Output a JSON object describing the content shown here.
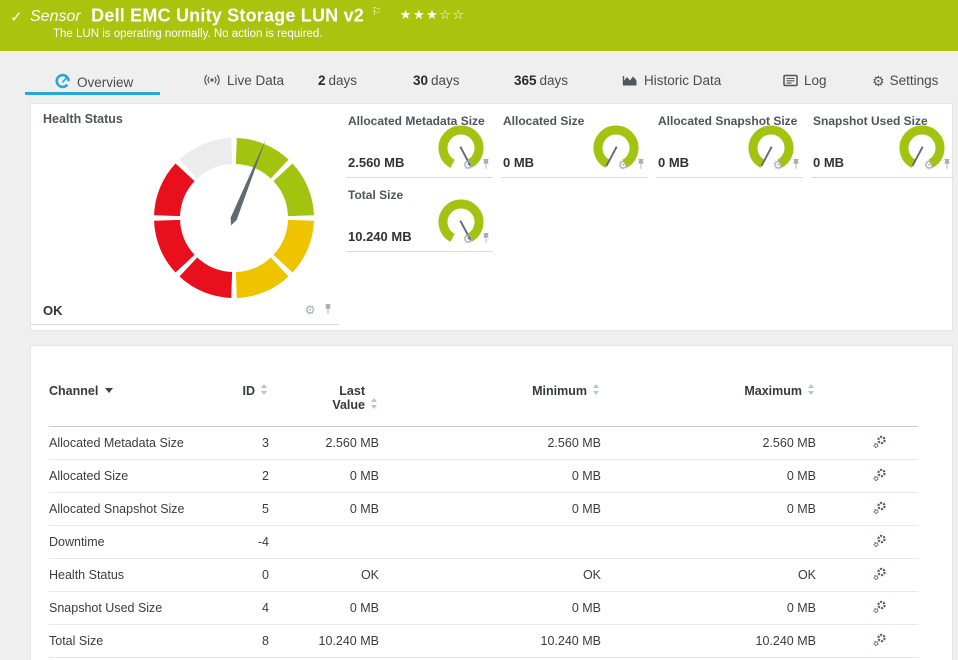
{
  "colors": {
    "brand-green": "#a8c40e",
    "accent-blue": "#2aa5dc",
    "gauge-green": "#a2c411",
    "gauge-yellow": "#f0c300",
    "gauge-red": "#e8101c",
    "gauge-grey": "#ececec",
    "needle-grey": "#5f6a71"
  },
  "header": {
    "status_icon": "check",
    "status_glyph": "✓",
    "kind_label": "Sensor",
    "title": "Dell EMC Unity Storage LUN v2",
    "flag_glyph": "⚐",
    "rating_stars": "★★★☆☆",
    "stars_filled": 3,
    "stars_total": 5,
    "subtitle": "The LUN is operating normally. No action is required."
  },
  "tabs": {
    "overview": {
      "label": "Overview",
      "active": true
    },
    "live_data": {
      "label": "Live Data"
    },
    "days2": {
      "number": "2",
      "label": "days"
    },
    "days30": {
      "number": "30",
      "label": "days"
    },
    "days365": {
      "number": "365",
      "label": "days"
    },
    "historic": {
      "label": "Historic Data"
    },
    "log": {
      "label": "Log"
    },
    "settings": {
      "label": "Settings",
      "gear_glyph": "⚙"
    }
  },
  "health_gauge": {
    "title": "Health Status",
    "value": "OK",
    "needle_deg": 22,
    "segments": [
      {
        "from_deg": 0,
        "to_deg": 45,
        "color": "green"
      },
      {
        "from_deg": 45,
        "to_deg": 90,
        "color": "green"
      },
      {
        "from_deg": 90,
        "to_deg": 135,
        "color": "yellow"
      },
      {
        "from_deg": 135,
        "to_deg": 180,
        "color": "yellow"
      },
      {
        "from_deg": 180,
        "to_deg": 225,
        "color": "red"
      },
      {
        "from_deg": 225,
        "to_deg": 270,
        "color": "red"
      },
      {
        "from_deg": 270,
        "to_deg": 315,
        "color": "red"
      },
      {
        "from_deg": 315,
        "to_deg": 360,
        "color": "grey"
      }
    ],
    "gear_glyph": "⚙"
  },
  "mini_gauges": [
    {
      "title": "Allocated Metadata Size",
      "value": "2.560 MB",
      "needle_deg": 152
    },
    {
      "title": "Allocated Size",
      "value": "0 MB",
      "needle_deg": 208
    },
    {
      "title": "Allocated Snapshot Size",
      "value": "0 MB",
      "needle_deg": 208
    },
    {
      "title": "Snapshot Used Size",
      "value": "0 MB",
      "needle_deg": 208
    },
    {
      "title": "Total Size",
      "value": "10.240 MB",
      "needle_deg": 152
    }
  ],
  "table": {
    "headers": {
      "channel": "Channel",
      "id": "ID",
      "last_value": "Last Value",
      "minimum": "Minimum",
      "maximum": "Maximum"
    },
    "rows": [
      {
        "channel": "Allocated Metadata Size",
        "id": "3",
        "last": "2.560 MB",
        "min": "2.560 MB",
        "max": "2.560 MB"
      },
      {
        "channel": "Allocated Size",
        "id": "2",
        "last": "0 MB",
        "min": "0 MB",
        "max": "0 MB"
      },
      {
        "channel": "Allocated Snapshot Size",
        "id": "5",
        "last": "0 MB",
        "min": "0 MB",
        "max": "0 MB"
      },
      {
        "channel": "Downtime",
        "id": "-4",
        "last": "",
        "min": "",
        "max": ""
      },
      {
        "channel": "Health Status",
        "id": "0",
        "last": "OK",
        "min": "OK",
        "max": "OK"
      },
      {
        "channel": "Snapshot Used Size",
        "id": "4",
        "last": "0 MB",
        "min": "0 MB",
        "max": "0 MB"
      },
      {
        "channel": "Total Size",
        "id": "8",
        "last": "10.240 MB",
        "min": "10.240 MB",
        "max": "10.240 MB"
      }
    ]
  }
}
